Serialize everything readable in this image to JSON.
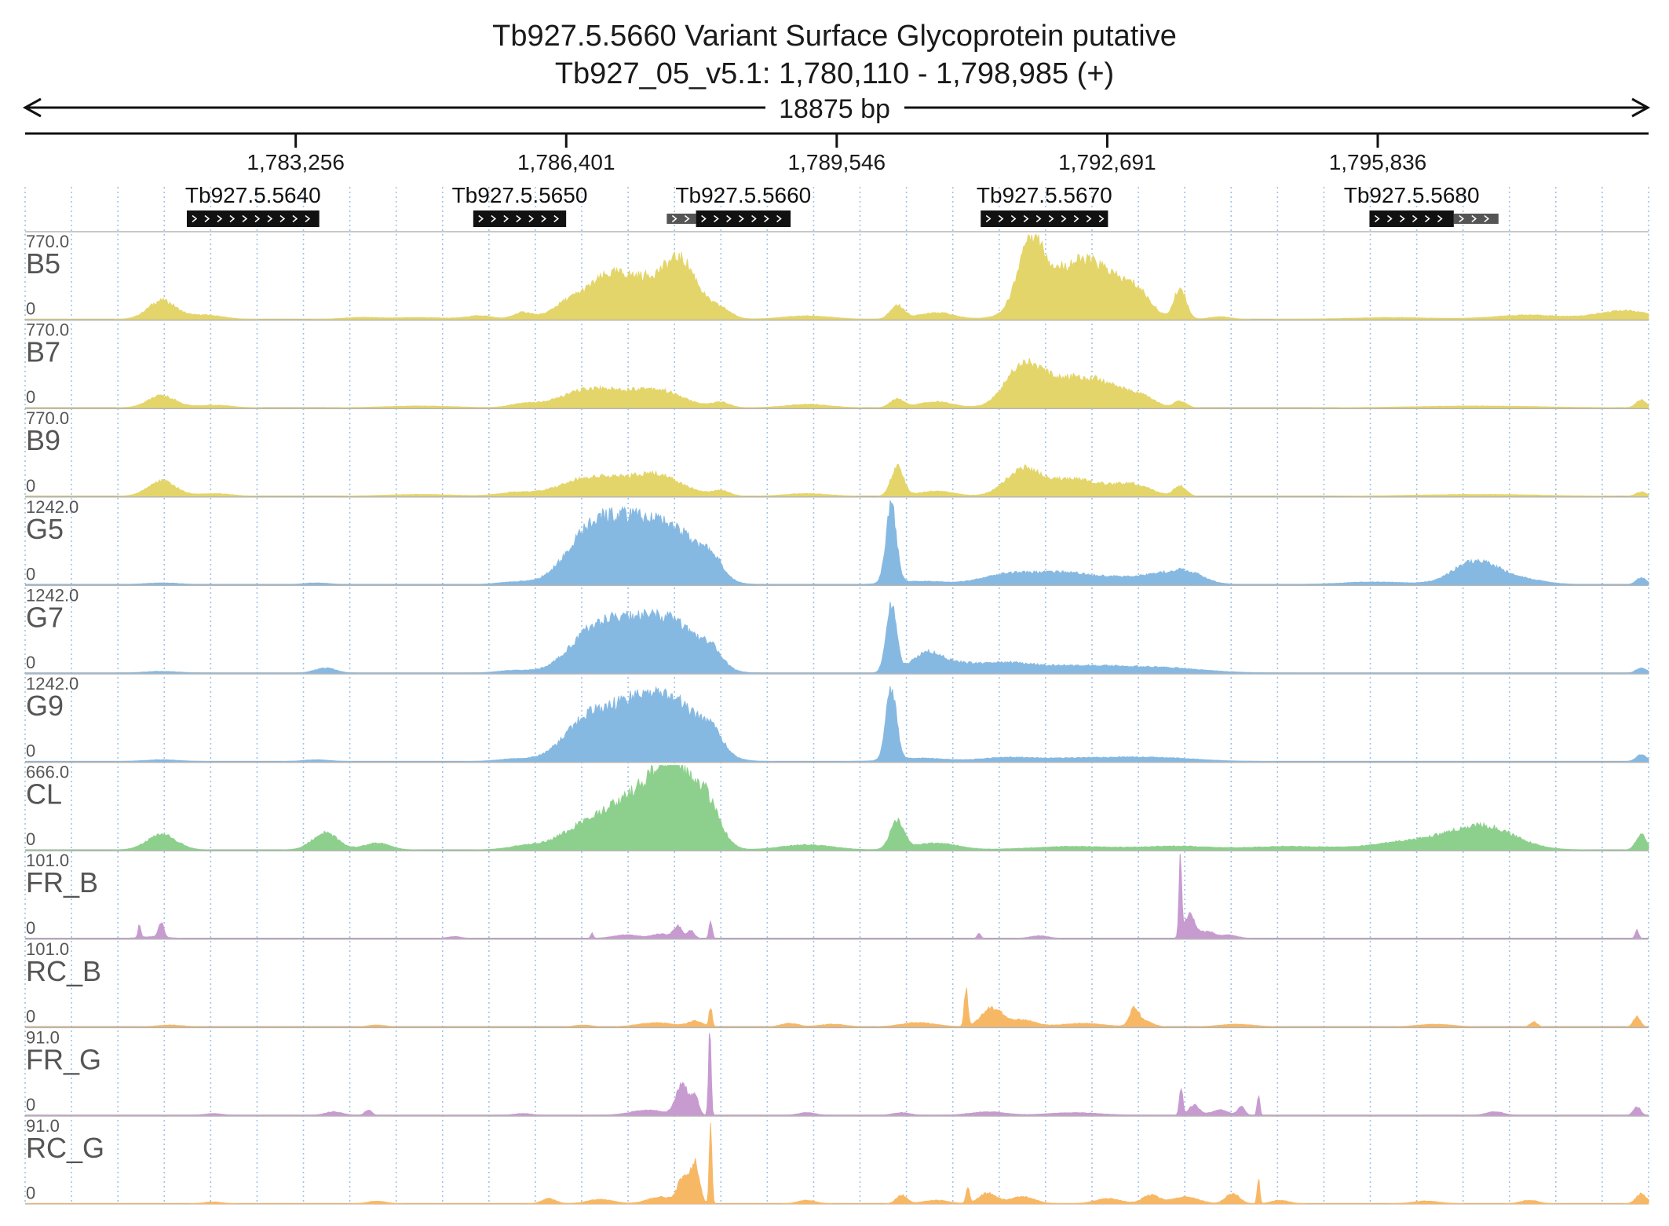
{
  "header": {
    "title": "Tb927.5.5660  Variant Surface Glycoprotein  putative",
    "subtitle": "Tb927_05_v5.1: 1,780,110 - 1,798,985 (+)",
    "span_label": "18875 bp"
  },
  "chart_data": {
    "type": "area",
    "xlim": [
      1780110,
      1798985
    ],
    "ticks": [
      {
        "value": 1783256,
        "label": "1,783,256"
      },
      {
        "value": 1786401,
        "label": "1,786,401"
      },
      {
        "value": 1789546,
        "label": "1,789,546"
      },
      {
        "value": 1792691,
        "label": "1,792,691"
      },
      {
        "value": 1795836,
        "label": "1,795,836"
      }
    ],
    "grid": true,
    "genes": [
      {
        "id": "Tb927.5.5640",
        "start": 1781990,
        "end": 1783530,
        "strand": "+",
        "utr": []
      },
      {
        "id": "Tb927.5.5650",
        "start": 1785320,
        "end": 1786400,
        "strand": "+",
        "utr": []
      },
      {
        "id": "Tb927.5.5660",
        "start": 1787910,
        "end": 1789010,
        "strand": "+",
        "utr": [
          [
            1787570,
            1787910
          ]
        ]
      },
      {
        "id": "Tb927.5.5670",
        "start": 1791220,
        "end": 1792700,
        "strand": "+",
        "utr": []
      },
      {
        "id": "Tb927.5.5680",
        "start": 1795740,
        "end": 1796720,
        "strand": "+",
        "utr": [
          [
            1796720,
            1797240
          ]
        ]
      }
    ],
    "tracks": [
      {
        "name": "B5",
        "max": 770.0,
        "min": 0,
        "color": "#e4d56a",
        "peaks": [
          [
            1781700,
            160,
            0.22
          ],
          [
            1782200,
            200,
            0.05
          ],
          [
            1784000,
            200,
            0.02
          ],
          [
            1784700,
            350,
            0.02
          ],
          [
            1785400,
            150,
            0.04
          ],
          [
            1785900,
            110,
            0.08
          ],
          [
            1786400,
            180,
            0.15
          ],
          [
            1786850,
            250,
            0.38
          ],
          [
            1787400,
            350,
            0.44
          ],
          [
            1787760,
            180,
            0.44
          ],
          [
            1788200,
            120,
            0.1
          ],
          [
            1789200,
            280,
            0.04
          ],
          [
            1790250,
            80,
            0.16
          ],
          [
            1790700,
            200,
            0.08
          ],
          [
            1791800,
            140,
            0.75
          ],
          [
            1792200,
            360,
            0.5
          ],
          [
            1792650,
            300,
            0.38
          ],
          [
            1793050,
            150,
            0.2
          ],
          [
            1793540,
            70,
            0.36
          ],
          [
            1794000,
            120,
            0.03
          ],
          [
            1796000,
            500,
            0.02
          ],
          [
            1797600,
            400,
            0.05
          ],
          [
            1798700,
            300,
            0.1
          ]
        ]
      },
      {
        "name": "B7",
        "max": 770.0,
        "min": 0,
        "color": "#e4d56a",
        "peaks": [
          [
            1781700,
            160,
            0.14
          ],
          [
            1782300,
            200,
            0.03
          ],
          [
            1784700,
            400,
            0.02
          ],
          [
            1785900,
            150,
            0.04
          ],
          [
            1786700,
            350,
            0.22
          ],
          [
            1787450,
            300,
            0.2
          ],
          [
            1788200,
            100,
            0.06
          ],
          [
            1789200,
            250,
            0.04
          ],
          [
            1790250,
            80,
            0.1
          ],
          [
            1790700,
            200,
            0.07
          ],
          [
            1791700,
            200,
            0.44
          ],
          [
            1792200,
            320,
            0.32
          ],
          [
            1792700,
            250,
            0.2
          ],
          [
            1793100,
            150,
            0.1
          ],
          [
            1793540,
            70,
            0.08
          ],
          [
            1797000,
            700,
            0.02
          ],
          [
            1798900,
            60,
            0.09
          ]
        ]
      },
      {
        "name": "B9",
        "max": 770.0,
        "min": 0,
        "color": "#e4d56a",
        "peaks": [
          [
            1781700,
            160,
            0.18
          ],
          [
            1782300,
            200,
            0.03
          ],
          [
            1784700,
            400,
            0.02
          ],
          [
            1785800,
            200,
            0.04
          ],
          [
            1786700,
            350,
            0.22
          ],
          [
            1787450,
            300,
            0.24
          ],
          [
            1788200,
            100,
            0.06
          ],
          [
            1789200,
            250,
            0.03
          ],
          [
            1790250,
            70,
            0.35
          ],
          [
            1790700,
            200,
            0.06
          ],
          [
            1791700,
            200,
            0.28
          ],
          [
            1792300,
            350,
            0.2
          ],
          [
            1793000,
            200,
            0.12
          ],
          [
            1793540,
            70,
            0.12
          ],
          [
            1797000,
            700,
            0.02
          ],
          [
            1798900,
            60,
            0.05
          ]
        ]
      },
      {
        "name": "G5",
        "max": 1242.0,
        "min": 0,
        "color": "#86b9e2",
        "peaks": [
          [
            1781700,
            200,
            0.02
          ],
          [
            1783500,
            150,
            0.02
          ],
          [
            1785800,
            200,
            0.03
          ],
          [
            1786650,
            280,
            0.5
          ],
          [
            1787100,
            300,
            0.58
          ],
          [
            1787650,
            300,
            0.6
          ],
          [
            1788100,
            120,
            0.2
          ],
          [
            1790180,
            60,
            0.9
          ],
          [
            1790500,
            300,
            0.04
          ],
          [
            1791500,
            300,
            0.1
          ],
          [
            1792200,
            400,
            0.14
          ],
          [
            1793200,
            350,
            0.1
          ],
          [
            1793600,
            200,
            0.12
          ],
          [
            1795800,
            400,
            0.03
          ],
          [
            1796950,
            250,
            0.25
          ],
          [
            1797400,
            300,
            0.08
          ],
          [
            1798900,
            60,
            0.08
          ]
        ]
      },
      {
        "name": "G7",
        "max": 1242.0,
        "min": 0,
        "color": "#86b9e2",
        "peaks": [
          [
            1781700,
            200,
            0.02
          ],
          [
            1783600,
            120,
            0.06
          ],
          [
            1785800,
            200,
            0.03
          ],
          [
            1786700,
            280,
            0.44
          ],
          [
            1787200,
            300,
            0.48
          ],
          [
            1787700,
            280,
            0.48
          ],
          [
            1788100,
            120,
            0.16
          ],
          [
            1790180,
            60,
            0.8
          ],
          [
            1790600,
            180,
            0.24
          ],
          [
            1791000,
            200,
            0.08
          ],
          [
            1791500,
            300,
            0.1
          ],
          [
            1792300,
            500,
            0.08
          ],
          [
            1793300,
            500,
            0.06
          ],
          [
            1798900,
            60,
            0.06
          ]
        ]
      },
      {
        "name": "G9",
        "max": 1242.0,
        "min": 0,
        "color": "#86b9e2",
        "peaks": [
          [
            1781700,
            200,
            0.02
          ],
          [
            1783500,
            150,
            0.02
          ],
          [
            1785800,
            200,
            0.03
          ],
          [
            1786650,
            280,
            0.46
          ],
          [
            1787200,
            300,
            0.56
          ],
          [
            1787700,
            300,
            0.58
          ],
          [
            1788100,
            120,
            0.2
          ],
          [
            1790180,
            60,
            0.84
          ],
          [
            1790500,
            300,
            0.04
          ],
          [
            1791500,
            300,
            0.04
          ],
          [
            1792400,
            500,
            0.04
          ],
          [
            1793300,
            450,
            0.04
          ],
          [
            1798900,
            60,
            0.08
          ]
        ]
      },
      {
        "name": "CL",
        "max": 666.0,
        "min": 0,
        "color": "#8dd08d",
        "peaks": [
          [
            1781700,
            170,
            0.18
          ],
          [
            1783600,
            150,
            0.2
          ],
          [
            1784200,
            150,
            0.08
          ],
          [
            1785900,
            200,
            0.04
          ],
          [
            1786600,
            300,
            0.24
          ],
          [
            1787150,
            300,
            0.5
          ],
          [
            1787650,
            250,
            0.96
          ],
          [
            1788050,
            150,
            0.4
          ],
          [
            1789200,
            300,
            0.06
          ],
          [
            1790250,
            80,
            0.34
          ],
          [
            1790700,
            250,
            0.08
          ],
          [
            1792300,
            500,
            0.04
          ],
          [
            1793500,
            400,
            0.04
          ],
          [
            1794800,
            500,
            0.04
          ],
          [
            1796400,
            500,
            0.12
          ],
          [
            1797100,
            350,
            0.24
          ],
          [
            1798900,
            60,
            0.18
          ]
        ]
      },
      {
        "name": "FR_B",
        "max": 101.0,
        "min": 0,
        "color": "#c79bd0",
        "peaks": [
          [
            1781440,
            15,
            0.16
          ],
          [
            1781690,
            30,
            0.18
          ],
          [
            1781600,
            150,
            0.02
          ],
          [
            1785100,
            80,
            0.02
          ],
          [
            1786700,
            15,
            0.06
          ],
          [
            1787100,
            150,
            0.04
          ],
          [
            1787500,
            100,
            0.05
          ],
          [
            1787700,
            50,
            0.14
          ],
          [
            1787850,
            40,
            0.09
          ],
          [
            1788080,
            18,
            0.2
          ],
          [
            1791200,
            20,
            0.06
          ],
          [
            1791900,
            100,
            0.03
          ],
          [
            1793540,
            15,
            0.96
          ],
          [
            1793650,
            60,
            0.28
          ],
          [
            1793850,
            80,
            0.08
          ],
          [
            1794100,
            100,
            0.04
          ],
          [
            1798850,
            20,
            0.1
          ]
        ]
      },
      {
        "name": "RC_B",
        "max": 101.0,
        "min": 0,
        "color": "#f7b866",
        "peaks": [
          [
            1781800,
            150,
            0.02
          ],
          [
            1784200,
            100,
            0.02
          ],
          [
            1786600,
            100,
            0.02
          ],
          [
            1787450,
            200,
            0.05
          ],
          [
            1787900,
            80,
            0.07
          ],
          [
            1788080,
            18,
            0.22
          ],
          [
            1789000,
            100,
            0.04
          ],
          [
            1789500,
            150,
            0.03
          ],
          [
            1790500,
            200,
            0.05
          ],
          [
            1791050,
            20,
            0.45
          ],
          [
            1791350,
            120,
            0.22
          ],
          [
            1791700,
            150,
            0.08
          ],
          [
            1792400,
            250,
            0.04
          ],
          [
            1793000,
            50,
            0.18
          ],
          [
            1793100,
            100,
            0.08
          ],
          [
            1794200,
            200,
            0.03
          ],
          [
            1796500,
            200,
            0.03
          ],
          [
            1797650,
            40,
            0.06
          ],
          [
            1798850,
            40,
            0.12
          ]
        ]
      },
      {
        "name": "FR_G",
        "max": 91.0,
        "min": 0,
        "color": "#c79bd0",
        "peaks": [
          [
            1782300,
            100,
            0.02
          ],
          [
            1783700,
            100,
            0.04
          ],
          [
            1784100,
            40,
            0.06
          ],
          [
            1785900,
            100,
            0.02
          ],
          [
            1787350,
            200,
            0.06
          ],
          [
            1787750,
            70,
            0.36
          ],
          [
            1787900,
            40,
            0.22
          ],
          [
            1788070,
            15,
            0.96
          ],
          [
            1789200,
            100,
            0.03
          ],
          [
            1790300,
            100,
            0.03
          ],
          [
            1791300,
            200,
            0.04
          ],
          [
            1792300,
            300,
            0.03
          ],
          [
            1793550,
            20,
            0.3
          ],
          [
            1793700,
            60,
            0.12
          ],
          [
            1794000,
            100,
            0.06
          ],
          [
            1794250,
            40,
            0.1
          ],
          [
            1794450,
            15,
            0.25
          ],
          [
            1797200,
            100,
            0.04
          ],
          [
            1798850,
            40,
            0.1
          ]
        ]
      },
      {
        "name": "RC_G",
        "max": 91.0,
        "min": 0,
        "color": "#f7b866",
        "peaks": [
          [
            1782300,
            100,
            0.02
          ],
          [
            1784200,
            100,
            0.03
          ],
          [
            1786200,
            80,
            0.06
          ],
          [
            1786800,
            150,
            0.05
          ],
          [
            1787500,
            150,
            0.08
          ],
          [
            1787760,
            60,
            0.3
          ],
          [
            1787900,
            50,
            0.48
          ],
          [
            1788080,
            15,
            0.98
          ],
          [
            1789200,
            100,
            0.04
          ],
          [
            1790300,
            60,
            0.1
          ],
          [
            1790700,
            150,
            0.04
          ],
          [
            1791070,
            20,
            0.18
          ],
          [
            1791300,
            100,
            0.12
          ],
          [
            1791700,
            150,
            0.08
          ],
          [
            1792700,
            150,
            0.06
          ],
          [
            1793200,
            100,
            0.1
          ],
          [
            1793600,
            150,
            0.08
          ],
          [
            1794150,
            80,
            0.12
          ],
          [
            1794450,
            15,
            0.28
          ],
          [
            1794700,
            100,
            0.04
          ],
          [
            1796400,
            150,
            0.03
          ],
          [
            1797600,
            100,
            0.04
          ],
          [
            1798900,
            60,
            0.12
          ]
        ]
      }
    ]
  }
}
